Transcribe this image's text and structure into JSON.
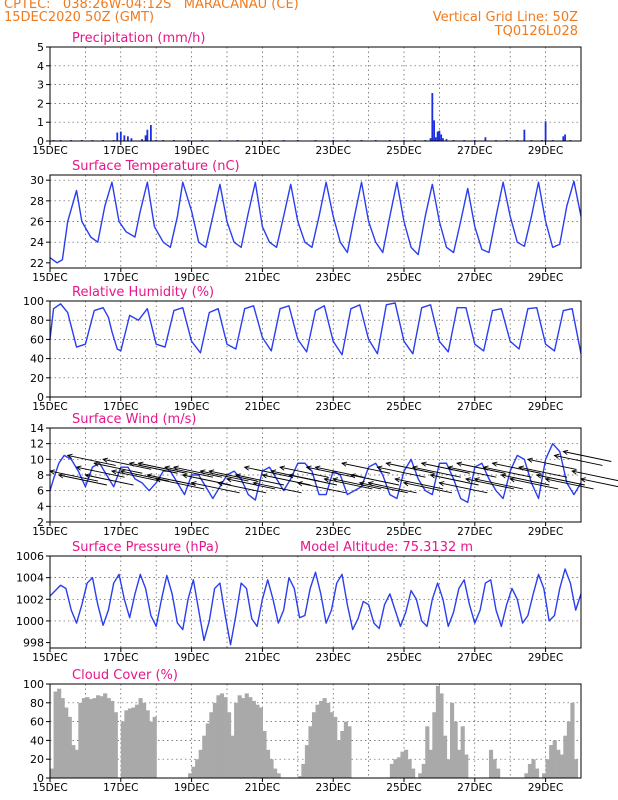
{
  "header": {
    "line1": "CPTEC:   038:26W-04:12S   MARACANAU (CE)",
    "line2": "15DEC2020 50Z (GMT)",
    "right1": "Vertical Grid Line: 50Z",
    "right2": "TQ0126L028"
  },
  "chart_data": [
    {
      "type": "bar",
      "title": "Precipitation  (mm/h)",
      "x_start_day": 15,
      "x_end_day": 30,
      "ylim": [
        0,
        5
      ],
      "yticks": [
        0,
        1,
        2,
        3,
        4,
        5
      ],
      "xticks": [
        "15DEC",
        "17DEC",
        "19DEC",
        "21DEC",
        "23DEC",
        "25DEC",
        "27DEC",
        "29DEC"
      ],
      "x": [
        15.1,
        15.3,
        15.6,
        15.9,
        16.2,
        16.5,
        16.8,
        16.9,
        17.0,
        17.1,
        17.2,
        17.3,
        17.6,
        17.7,
        17.75,
        17.85,
        18.0,
        18.2,
        18.5,
        18.9,
        19.3,
        19.8,
        20.3,
        20.8,
        21.2,
        21.6,
        22.0,
        22.5,
        23.0,
        23.4,
        23.8,
        24.2,
        24.6,
        25.0,
        25.3,
        25.6,
        25.75,
        25.8,
        25.85,
        25.9,
        25.95,
        26.0,
        26.05,
        26.1,
        26.2,
        26.4,
        26.7,
        27.0,
        27.3,
        27.6,
        27.9,
        28.2,
        28.4,
        28.6,
        28.9,
        29.0,
        29.2,
        29.5,
        29.55,
        29.7
      ],
      "values": [
        0.05,
        0.05,
        0.05,
        0.05,
        0.05,
        0.05,
        0.05,
        0.45,
        0.5,
        0.3,
        0.25,
        0.15,
        0.1,
        0.3,
        0.6,
        0.85,
        0.05,
        0.05,
        0.05,
        0.05,
        0.05,
        0.05,
        0.05,
        0.05,
        0.05,
        0.05,
        0.05,
        0.05,
        0.05,
        0.05,
        0.05,
        0.05,
        0.05,
        0.05,
        0.05,
        0.05,
        0.15,
        2.55,
        1.1,
        0.2,
        0.5,
        0.55,
        0.35,
        0.15,
        0.1,
        0.05,
        0.05,
        0.05,
        0.2,
        0.05,
        0.05,
        0.05,
        0.6,
        0.05,
        0.05,
        1.05,
        0.05,
        0.25,
        0.35,
        0.05
      ]
    },
    {
      "type": "line",
      "title": "Surface Temperature  (nC)",
      "ylim": [
        21.5,
        30.5
      ],
      "yticks": [
        22,
        24,
        26,
        28,
        30
      ],
      "xticks": [
        "15DEC",
        "17DEC",
        "19DEC",
        "21DEC",
        "23DEC",
        "25DEC",
        "27DEC",
        "29DEC"
      ],
      "x": [
        15.0,
        15.2,
        15.35,
        15.5,
        15.75,
        15.9,
        16.15,
        16.35,
        16.55,
        16.75,
        16.95,
        17.15,
        17.4,
        17.55,
        17.75,
        17.95,
        18.2,
        18.4,
        18.6,
        18.75,
        19.0,
        19.2,
        19.4,
        19.6,
        19.8,
        20.0,
        20.2,
        20.4,
        20.6,
        20.8,
        21.0,
        21.2,
        21.4,
        21.6,
        21.8,
        22.0,
        22.2,
        22.4,
        22.6,
        22.8,
        23.0,
        23.2,
        23.4,
        23.6,
        23.8,
        24.0,
        24.2,
        24.4,
        24.6,
        24.8,
        25.0,
        25.2,
        25.4,
        25.6,
        25.8,
        26.0,
        26.2,
        26.4,
        26.6,
        26.8,
        27.0,
        27.2,
        27.4,
        27.6,
        27.8,
        28.0,
        28.2,
        28.4,
        28.6,
        28.8,
        29.0,
        29.2,
        29.4,
        29.6,
        29.8,
        30.0
      ],
      "values": [
        22.5,
        22.0,
        22.3,
        26.0,
        29.0,
        26.0,
        24.5,
        24.0,
        27.5,
        29.8,
        26.0,
        25.0,
        24.5,
        27.0,
        29.8,
        25.5,
        24.0,
        23.5,
        26.5,
        29.8,
        27.0,
        24.0,
        23.5,
        26.5,
        29.6,
        26.0,
        24.0,
        23.5,
        26.8,
        29.8,
        25.5,
        24.0,
        23.5,
        26.5,
        29.6,
        26.0,
        24.0,
        23.5,
        26.5,
        29.8,
        26.5,
        24.0,
        23.0,
        26.5,
        29.8,
        26.0,
        24.0,
        23.0,
        26.5,
        29.8,
        26.0,
        23.5,
        22.8,
        26.5,
        29.6,
        26.0,
        23.5,
        23.0,
        26.0,
        29.2,
        25.5,
        23.3,
        23.0,
        26.5,
        29.8,
        26.5,
        24.0,
        23.6,
        26.5,
        29.8,
        26.0,
        23.5,
        23.8,
        27.5,
        29.9,
        26.5
      ]
    },
    {
      "type": "line",
      "title": "Relative Humidity  (%)",
      "ylim": [
        0,
        100
      ],
      "yticks": [
        0,
        20,
        40,
        60,
        80,
        100
      ],
      "xticks": [
        "15DEC",
        "17DEC",
        "19DEC",
        "21DEC",
        "23DEC",
        "25DEC",
        "27DEC",
        "29DEC"
      ],
      "x": [
        15.0,
        15.1,
        15.3,
        15.5,
        15.75,
        16.0,
        16.25,
        16.5,
        16.65,
        16.75,
        16.9,
        17.0,
        17.25,
        17.5,
        17.75,
        18.0,
        18.25,
        18.5,
        18.75,
        19.0,
        19.25,
        19.5,
        19.75,
        20.0,
        20.25,
        20.5,
        20.75,
        21.0,
        21.25,
        21.5,
        21.75,
        22.0,
        22.25,
        22.5,
        22.75,
        23.0,
        23.25,
        23.5,
        23.75,
        24.0,
        24.25,
        24.5,
        24.75,
        25.0,
        25.25,
        25.5,
        25.75,
        26.0,
        26.25,
        26.5,
        26.75,
        27.0,
        27.25,
        27.5,
        27.75,
        28.0,
        28.25,
        28.5,
        28.75,
        29.0,
        29.25,
        29.5,
        29.75,
        30.0
      ],
      "values": [
        60,
        92,
        97,
        88,
        52,
        55,
        90,
        93,
        83,
        68,
        50,
        48,
        85,
        80,
        92,
        55,
        52,
        90,
        93,
        58,
        46,
        88,
        92,
        55,
        50,
        92,
        95,
        62,
        48,
        92,
        95,
        60,
        47,
        90,
        95,
        58,
        44,
        92,
        96,
        60,
        45,
        96,
        98,
        58,
        45,
        93,
        96,
        58,
        47,
        93,
        93,
        55,
        48,
        90,
        92,
        58,
        50,
        92,
        93,
        55,
        48,
        90,
        92,
        45
      ]
    },
    {
      "type": "line",
      "title": "Surface Wind  (m/s)",
      "ylim": [
        2,
        14
      ],
      "yticks": [
        2,
        4,
        6,
        8,
        10,
        12,
        14
      ],
      "xticks": [
        "15DEC",
        "17DEC",
        "19DEC",
        "21DEC",
        "23DEC",
        "25DEC",
        "27DEC",
        "29DEC"
      ],
      "x": [
        15.0,
        15.1,
        15.25,
        15.4,
        15.6,
        15.8,
        16.0,
        16.2,
        16.4,
        16.6,
        16.8,
        17.0,
        17.2,
        17.4,
        17.6,
        17.8,
        18.0,
        18.2,
        18.4,
        18.6,
        18.8,
        19.0,
        19.2,
        19.4,
        19.6,
        19.8,
        20.0,
        20.2,
        20.4,
        20.6,
        20.8,
        21.0,
        21.2,
        21.4,
        21.6,
        21.8,
        22.0,
        22.2,
        22.4,
        22.6,
        22.8,
        23.0,
        23.2,
        23.4,
        23.6,
        23.8,
        24.0,
        24.2,
        24.4,
        24.6,
        24.8,
        25.0,
        25.2,
        25.4,
        25.6,
        25.8,
        26.0,
        26.2,
        26.4,
        26.6,
        26.8,
        27.0,
        27.2,
        27.4,
        27.6,
        27.8,
        28.0,
        28.2,
        28.4,
        28.6,
        28.8,
        29.0,
        29.2,
        29.4,
        29.6,
        29.8,
        30.0
      ],
      "values": [
        6.0,
        7.5,
        9.5,
        10.5,
        10.0,
        8.5,
        6.5,
        9.0,
        9.5,
        8.0,
        6.5,
        9.0,
        9.0,
        7.5,
        7.0,
        6.0,
        7.0,
        8.5,
        8.5,
        7.0,
        5.5,
        8.0,
        8.0,
        6.5,
        5.0,
        6.5,
        8.0,
        8.5,
        7.5,
        5.5,
        4.8,
        8.5,
        9.0,
        7.5,
        6.0,
        7.5,
        9.5,
        9.5,
        8.5,
        5.5,
        5.5,
        8.5,
        8.0,
        5.5,
        6.0,
        6.5,
        9.0,
        9.5,
        8.0,
        5.5,
        5.0,
        8.5,
        10.0,
        7.5,
        6.0,
        5.5,
        9.5,
        9.5,
        7.5,
        5.0,
        4.5,
        9.0,
        9.5,
        7.5,
        6.0,
        5.0,
        8.5,
        10.5,
        10.0,
        7.0,
        5.0,
        10.0,
        12.0,
        11.0,
        7.0,
        5.5,
        7.0
      ]
    },
    {
      "type": "line",
      "title": "Surface Pressure  (hPa)",
      "annotation": "Model Altitude: 75.3132  m",
      "ylim": [
        997.5,
        1006
      ],
      "yticks": [
        998,
        1000,
        1002,
        1004,
        1006
      ],
      "xticks": [
        "15DEC",
        "17DEC",
        "19DEC",
        "21DEC",
        "23DEC",
        "25DEC",
        "27DEC",
        "29DEC"
      ],
      "x": [
        15.0,
        15.15,
        15.3,
        15.45,
        15.6,
        15.75,
        15.9,
        16.05,
        16.2,
        16.35,
        16.5,
        16.65,
        16.8,
        16.95,
        17.1,
        17.25,
        17.4,
        17.55,
        17.7,
        17.85,
        18.0,
        18.15,
        18.3,
        18.45,
        18.6,
        18.75,
        18.9,
        19.05,
        19.2,
        19.35,
        19.5,
        19.65,
        19.8,
        19.95,
        20.1,
        20.25,
        20.4,
        20.55,
        20.7,
        20.85,
        21.0,
        21.15,
        21.3,
        21.45,
        21.6,
        21.75,
        21.9,
        22.05,
        22.2,
        22.35,
        22.5,
        22.65,
        22.8,
        22.95,
        23.1,
        23.25,
        23.4,
        23.55,
        23.7,
        23.85,
        24.0,
        24.15,
        24.3,
        24.45,
        24.6,
        24.75,
        24.9,
        25.05,
        25.2,
        25.35,
        25.5,
        25.65,
        25.8,
        25.95,
        26.1,
        26.25,
        26.4,
        26.55,
        26.7,
        26.85,
        27.0,
        27.15,
        27.3,
        27.45,
        27.6,
        27.75,
        27.9,
        28.05,
        28.2,
        28.35,
        28.5,
        28.65,
        28.8,
        28.95,
        29.1,
        29.25,
        29.4,
        29.55,
        29.7,
        29.85,
        30.0
      ],
      "values": [
        1002.3,
        1002.8,
        1003.3,
        1003.0,
        1001.0,
        999.8,
        1001.5,
        1003.5,
        1004.0,
        1001.5,
        999.6,
        1001.0,
        1003.5,
        1004.3,
        1002.0,
        1000.3,
        1002.5,
        1004.3,
        1003.0,
        1000.5,
        999.5,
        1002.0,
        1004.2,
        1002.5,
        999.8,
        999.2,
        1002.0,
        1003.8,
        1001.0,
        998.2,
        1000.0,
        1003.0,
        1003.5,
        1000.5,
        997.8,
        1000.5,
        1003.5,
        1003.0,
        1000.2,
        999.5,
        1002.0,
        1003.8,
        1002.0,
        999.8,
        1001.0,
        1004.0,
        1003.0,
        1000.3,
        1000.5,
        1003.0,
        1004.5,
        1002.5,
        999.8,
        1001.0,
        1003.5,
        1004.3,
        1001.5,
        999.2,
        1000.2,
        1001.8,
        1001.5,
        999.8,
        999.3,
        1001.5,
        1002.5,
        1001.0,
        999.5,
        1000.8,
        1002.8,
        1002.0,
        1000.0,
        999.5,
        1002.0,
        1003.5,
        1002.0,
        999.5,
        1000.8,
        1003.0,
        1003.8,
        1001.5,
        999.8,
        1001.0,
        1003.5,
        1003.8,
        1001.0,
        999.5,
        1001.5,
        1003.0,
        1002.0,
        999.8,
        1000.5,
        1002.5,
        1004.3,
        1003.0,
        1000.0,
        1000.5,
        1003.0,
        1004.8,
        1003.5,
        1001.0,
        1002.5
      ]
    },
    {
      "type": "area",
      "title": "Cloud Cover  (%)",
      "ylim": [
        0,
        100
      ],
      "yticks": [
        0,
        20,
        40,
        60,
        80,
        100
      ],
      "xticks": [
        "15DEC",
        "17DEC",
        "19DEC",
        "21DEC",
        "23DEC",
        "25DEC",
        "27DEC",
        "29DEC"
      ],
      "x": [
        15.0,
        15.1,
        15.2,
        15.3,
        15.4,
        15.5,
        15.6,
        15.7,
        15.8,
        15.9,
        16.0,
        16.1,
        16.2,
        16.3,
        16.4,
        16.5,
        16.6,
        16.7,
        16.8,
        16.9,
        17.0,
        17.1,
        17.2,
        17.3,
        17.4,
        17.5,
        17.6,
        17.7,
        17.8,
        17.9,
        18.0,
        18.1,
        18.2,
        18.3,
        18.4,
        18.5,
        18.6,
        18.7,
        18.8,
        18.9,
        19.0,
        19.1,
        19.2,
        19.3,
        19.4,
        19.5,
        19.6,
        19.7,
        19.8,
        19.9,
        20.0,
        20.1,
        20.2,
        20.3,
        20.4,
        20.5,
        20.6,
        20.7,
        20.8,
        20.9,
        21.0,
        21.1,
        21.2,
        21.3,
        21.4,
        21.5,
        21.6,
        21.7,
        21.8,
        21.9,
        22.0,
        22.1,
        22.2,
        22.3,
        22.4,
        22.5,
        22.6,
        22.7,
        22.8,
        22.9,
        23.0,
        23.1,
        23.2,
        23.3,
        23.4,
        23.5,
        23.6,
        23.7,
        23.8,
        23.9,
        24.0,
        24.1,
        24.2,
        24.3,
        24.4,
        24.5,
        24.6,
        24.7,
        24.8,
        24.9,
        25.0,
        25.1,
        25.2,
        25.3,
        25.4,
        25.5,
        25.6,
        25.7,
        25.8,
        25.9,
        26.0,
        26.1,
        26.2,
        26.3,
        26.4,
        26.5,
        26.6,
        26.7,
        26.8,
        26.9,
        27.0,
        27.1,
        27.2,
        27.3,
        27.4,
        27.5,
        27.6,
        27.7,
        27.8,
        27.9,
        28.0,
        28.1,
        28.2,
        28.3,
        28.4,
        28.5,
        28.6,
        28.7,
        28.8,
        28.9,
        29.0,
        29.1,
        29.2,
        29.3,
        29.4,
        29.5,
        29.6,
        29.7,
        29.8,
        29.9
      ],
      "values": [
        10,
        92,
        95,
        85,
        75,
        65,
        35,
        30,
        80,
        85,
        86,
        84,
        85,
        88,
        87,
        90,
        85,
        82,
        70,
        0,
        60,
        72,
        74,
        75,
        78,
        85,
        80,
        72,
        60,
        65,
        0,
        0,
        0,
        0,
        0,
        0,
        0,
        0,
        0,
        5,
        12,
        20,
        30,
        45,
        58,
        70,
        80,
        88,
        90,
        86,
        70,
        45,
        80,
        88,
        85,
        90,
        86,
        82,
        78,
        75,
        50,
        30,
        20,
        10,
        5,
        0,
        0,
        0,
        0,
        0,
        2,
        15,
        35,
        55,
        70,
        78,
        82,
        85,
        80,
        70,
        65,
        40,
        50,
        60,
        55,
        0,
        0,
        0,
        0,
        0,
        0,
        0,
        0,
        0,
        0,
        0,
        15,
        20,
        22,
        28,
        30,
        20,
        10,
        0,
        5,
        15,
        55,
        30,
        70,
        98,
        90,
        45,
        20,
        80,
        60,
        30,
        55,
        25,
        0,
        0,
        0,
        0,
        0,
        0,
        30,
        20,
        10,
        0,
        0,
        0,
        0,
        0,
        0,
        0,
        5,
        15,
        20,
        10,
        0,
        5,
        20,
        35,
        40,
        30,
        25,
        45,
        60,
        80,
        20,
        0
      ]
    }
  ],
  "wind_vectors": {
    "x": [
      15.0,
      15.25,
      15.5,
      15.75,
      16.0,
      16.25,
      16.5,
      16.75,
      17.0,
      17.25,
      17.5,
      17.75,
      18.0,
      18.25,
      18.5,
      18.75,
      19.0,
      19.25,
      19.5,
      19.75,
      20.0,
      20.25,
      20.5,
      20.75,
      21.0,
      21.25,
      21.5,
      21.75,
      22.0,
      22.25,
      22.5,
      22.75,
      23.0,
      23.25,
      23.5,
      23.75,
      24.0,
      24.25,
      24.5,
      24.75,
      25.0,
      25.25,
      25.5,
      25.75,
      26.0,
      26.25,
      26.5,
      26.75,
      27.0,
      27.25,
      27.5,
      27.75,
      28.0,
      28.25,
      28.5,
      28.75,
      29.0,
      29.25,
      29.5,
      29.75,
      30.0
    ],
    "y": [
      8.5,
      8.0,
      10.5,
      9.0,
      8.0,
      9.5,
      10.0,
      8.5,
      8.5,
      9.5,
      9.5,
      8.0,
      7.5,
      9.0,
      9.0,
      8.0,
      7.0,
      8.5,
      8.5,
      7.0,
      7.5,
      8.0,
      9.0,
      7.0,
      8.0,
      8.5,
      9.0,
      8.0,
      7.0,
      9.0,
      9.0,
      7.5,
      7.5,
      9.5,
      8.0,
      7.0,
      7.0,
      9.0,
      9.5,
      7.5,
      7.0,
      9.0,
      9.5,
      8.0,
      7.0,
      9.0,
      9.5,
      7.5,
      7.5,
      9.0,
      9.5,
      8.0,
      7.5,
      9.0,
      10.0,
      8.0,
      7.5,
      10.5,
      11.0,
      8.5,
      7.5
    ],
    "arrow_from": "lower-right"
  }
}
